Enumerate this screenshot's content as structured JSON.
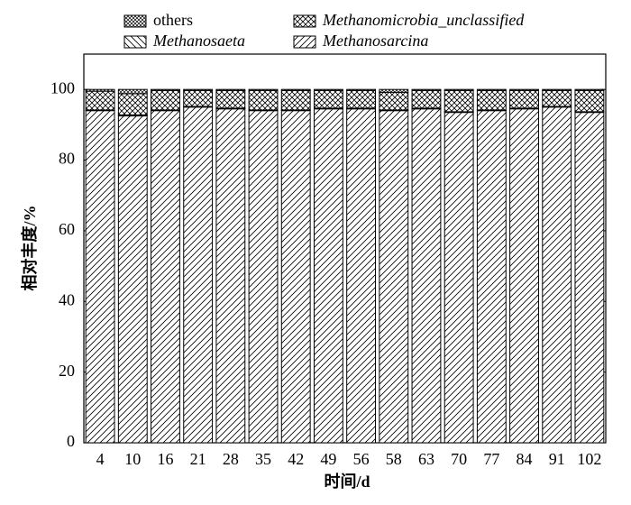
{
  "chart_data": {
    "type": "stacked_bar",
    "x_label": "时间/d",
    "y_label": "相对丰度/%",
    "categories": [
      "4",
      "10",
      "16",
      "21",
      "28",
      "35",
      "42",
      "49",
      "56",
      "58",
      "63",
      "70",
      "77",
      "84",
      "91",
      "102"
    ],
    "series": [
      {
        "name": "Methanosarcina",
        "color": "#000000",
        "hatch": "fwd",
        "italic": true,
        "values": [
          94,
          92.5,
          94,
          95,
          94.5,
          94,
          94,
          94.5,
          94.5,
          94,
          94.5,
          93.5,
          94,
          94.5,
          95,
          93.5
        ]
      },
      {
        "name": "Methanosaeta",
        "color": "#000000",
        "hatch": "back",
        "italic": true,
        "values": [
          0.2,
          0.3,
          0.2,
          0.2,
          0.2,
          0.2,
          0.2,
          0.2,
          0.2,
          0.2,
          0.2,
          0.2,
          0.2,
          0.2,
          0.2,
          0.2
        ]
      },
      {
        "name": "Methanomicrobia_unclassified",
        "color": "#000000",
        "hatch": "cross",
        "italic": true,
        "values": [
          5.3,
          6,
          5.5,
          4.5,
          5,
          5.5,
          5.5,
          5,
          5,
          5,
          5,
          6,
          5.5,
          5,
          4.5,
          6
        ]
      },
      {
        "name": "others",
        "color": "#000000",
        "hatch": "dense",
        "italic": false,
        "values": [
          0.5,
          1.2,
          0.3,
          0.3,
          0.3,
          0.3,
          0.3,
          0.3,
          0.3,
          0.8,
          0.3,
          0.3,
          0.3,
          0.3,
          0.3,
          0.3
        ]
      }
    ],
    "ylim": [
      0,
      110
    ],
    "yticks": [
      0,
      20,
      40,
      60,
      80,
      100
    ],
    "grid": false
  }
}
